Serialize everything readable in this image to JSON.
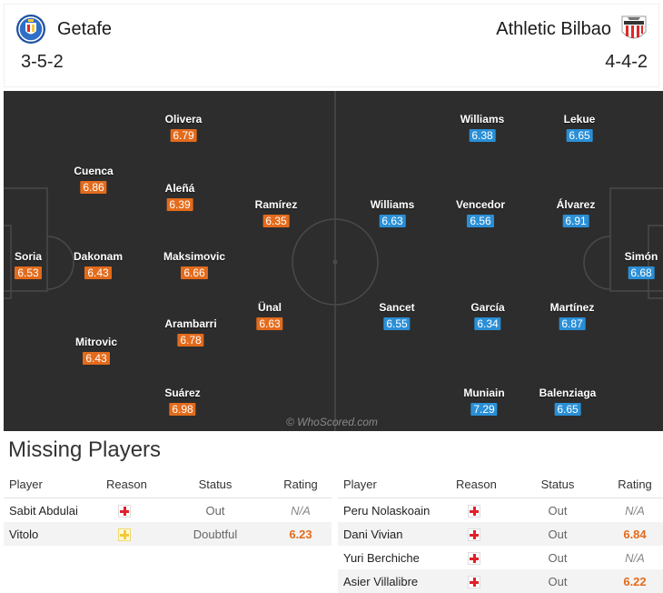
{
  "home": {
    "name": "Getafe",
    "formation": "3-5-2",
    "crest": "getafe-crest-icon",
    "rating_color": "#e36b1c",
    "players": [
      {
        "name": "Soria",
        "rating": "6.53"
      },
      {
        "name": "Cuenca",
        "rating": "6.86"
      },
      {
        "name": "Dakonam",
        "rating": "6.43"
      },
      {
        "name": "Mitrovic",
        "rating": "6.43"
      },
      {
        "name": "Olivera",
        "rating": "6.79"
      },
      {
        "name": "Aleñá",
        "rating": "6.39"
      },
      {
        "name": "Maksimovic",
        "rating": "6.66"
      },
      {
        "name": "Arambarri",
        "rating": "6.78"
      },
      {
        "name": "Suárez",
        "rating": "6.98"
      },
      {
        "name": "Ramírez",
        "rating": "6.35"
      },
      {
        "name": "Ünal",
        "rating": "6.63"
      }
    ]
  },
  "away": {
    "name": "Athletic Bilbao",
    "formation": "4-4-2",
    "crest": "athletic-crest-icon",
    "rating_color": "#2a8fd6",
    "players": [
      {
        "name": "Williams",
        "rating": "6.38"
      },
      {
        "name": "Williams",
        "rating": "6.63"
      },
      {
        "name": "Sancet",
        "rating": "6.55"
      },
      {
        "name": "Muniain",
        "rating": "7.29"
      },
      {
        "name": "Vencedor",
        "rating": "6.56"
      },
      {
        "name": "García",
        "rating": "6.34"
      },
      {
        "name": "Lekue",
        "rating": "6.65"
      },
      {
        "name": "Álvarez",
        "rating": "6.91"
      },
      {
        "name": "Martínez",
        "rating": "6.87"
      },
      {
        "name": "Balenziaga",
        "rating": "6.65"
      },
      {
        "name": "Simón",
        "rating": "6.68"
      }
    ]
  },
  "watermark": "© WhoScored.com",
  "missing": {
    "title": "Missing Players",
    "headers": {
      "player": "Player",
      "reason": "Reason",
      "status": "Status",
      "rating": "Rating"
    },
    "home_rows": [
      {
        "player": "Sabit Abdulai",
        "reason_icon": "injury-red-icon",
        "status": "Out",
        "rating": "N/A"
      },
      {
        "player": "Vitolo",
        "reason_icon": "injury-yellow-icon",
        "status": "Doubtful",
        "rating": "6.23"
      }
    ],
    "away_rows": [
      {
        "player": "Peru Nolaskoain",
        "reason_icon": "injury-red-icon",
        "status": "Out",
        "rating": "N/A"
      },
      {
        "player": "Dani Vivian",
        "reason_icon": "injury-red-icon",
        "status": "Out",
        "rating": "6.84"
      },
      {
        "player": "Yuri Berchiche",
        "reason_icon": "injury-red-icon",
        "status": "Out",
        "rating": "N/A"
      },
      {
        "player": "Asier Villalibre",
        "reason_icon": "injury-red-icon",
        "status": "Out",
        "rating": "6.22"
      }
    ]
  }
}
